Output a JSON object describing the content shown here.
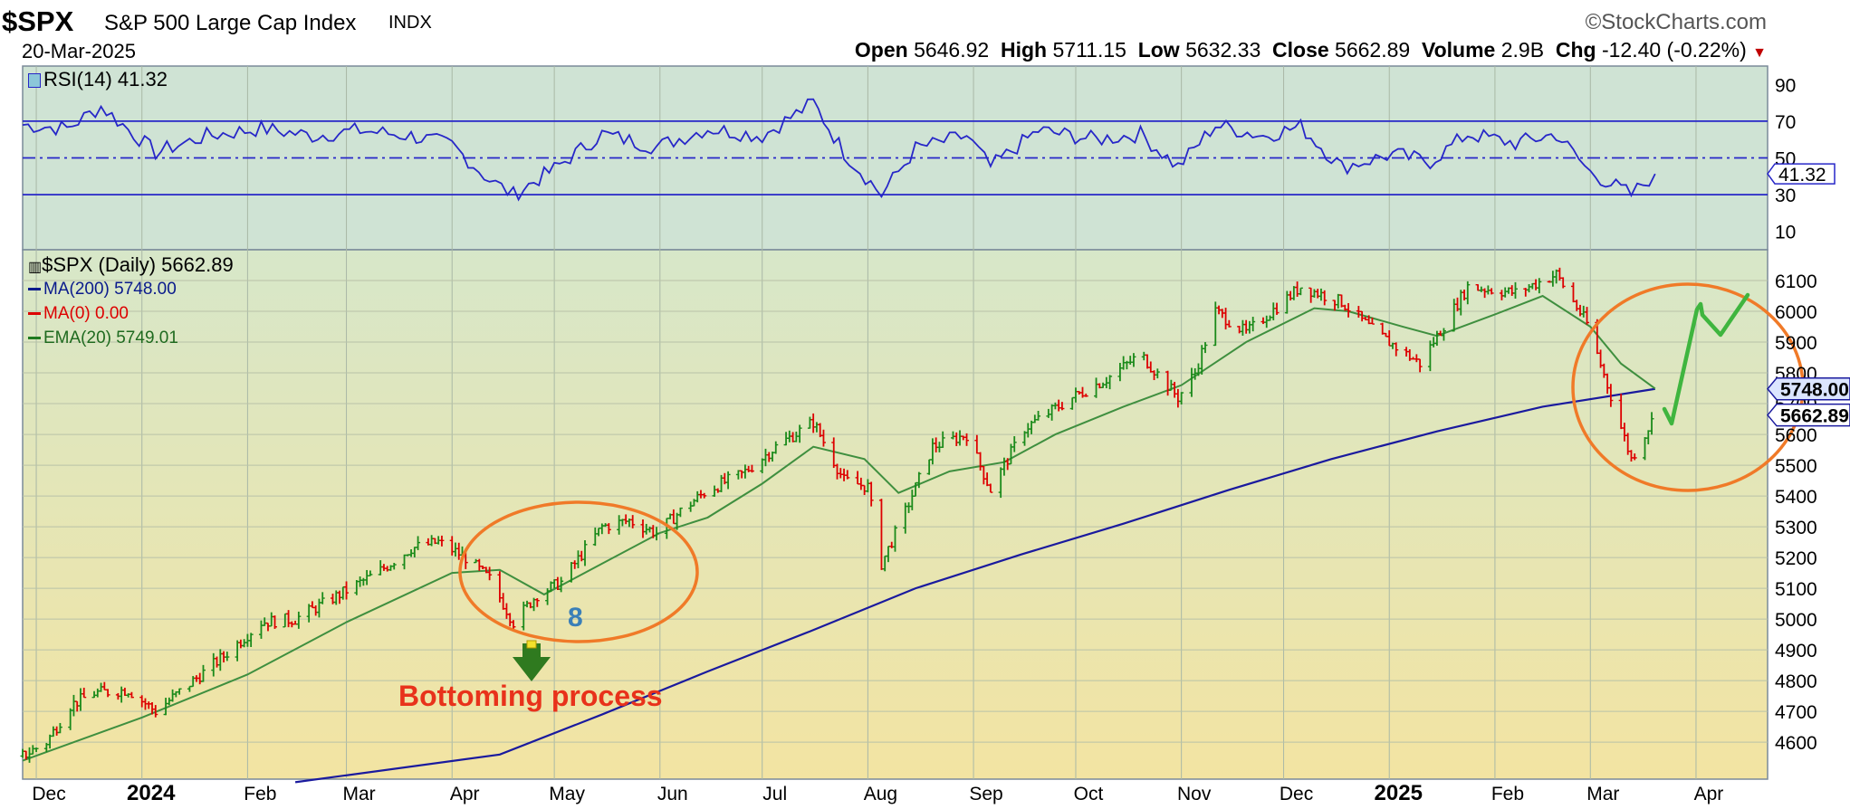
{
  "header": {
    "symbol": "$SPX",
    "name": "S&P 500 Large Cap Index",
    "exchange": "INDX",
    "date": "20-Mar-2025",
    "brand": "©StockCharts.com",
    "open_label": "Open",
    "open": "5646.92",
    "high_label": "High",
    "high": "5711.15",
    "low_label": "Low",
    "low": "5632.33",
    "close_label": "Close",
    "close": "5662.89",
    "volume_label": "Volume",
    "volume": "2.9B",
    "chg_label": "Chg",
    "chg": "-12.40 (-0.22%)",
    "chg_marker": "▼"
  },
  "rsi_panel": {
    "label": "RSI(14) 41.32",
    "last_value_tag": "41.32"
  },
  "price_panel": {
    "label": "$SPX (Daily) 5662.89",
    "legend": [
      {
        "text": "MA(200) 5748.00",
        "color": "#0a1a8c"
      },
      {
        "text": "MA(0) 0.00",
        "color": "#dd0000"
      },
      {
        "text": "EMA(20) 5749.01",
        "color": "#1f7a1f"
      }
    ],
    "ma200_tag": "5748.00",
    "close_tag": "5662.89"
  },
  "annotations": {
    "bottoming_text": "Bottoming process",
    "eight_text": "8"
  },
  "colors": {
    "price_up": "#1a8a1a",
    "price_down": "#dd0000",
    "ma200": "#1a1a9e",
    "ema20": "#3f8f3f",
    "rsi_line": "#2727c8",
    "annotation_orange": "#f07a28",
    "annotation_green": "#3fb53f",
    "arrow_green": "#2f7a1f"
  },
  "chart_data": [
    {
      "type": "line",
      "title": "RSI(14) 41.32",
      "x_range": [
        "2023-11-27",
        "2025-04-22"
      ],
      "ylim": [
        0,
        100
      ],
      "y_ticks": [
        10,
        30,
        50,
        70,
        90
      ],
      "tick_labels": [
        "10",
        "30",
        "50",
        "70",
        "90"
      ],
      "reference_lines": [
        30,
        50,
        70
      ],
      "series": [
        {
          "name": "RSI(14)",
          "x": [
            "2023-11-27",
            "2023-12-10",
            "2023-12-20",
            "2024-01-05",
            "2024-01-20",
            "2024-02-05",
            "2024-02-20",
            "2024-03-05",
            "2024-03-20",
            "2024-04-01",
            "2024-04-12",
            "2024-04-19",
            "2024-05-01",
            "2024-05-15",
            "2024-05-31",
            "2024-06-15",
            "2024-07-01",
            "2024-07-16",
            "2024-07-25",
            "2024-08-05",
            "2024-08-15",
            "2024-08-30",
            "2024-09-06",
            "2024-09-20",
            "2024-10-07",
            "2024-10-20",
            "2024-10-31",
            "2024-11-11",
            "2024-11-25",
            "2024-12-06",
            "2024-12-18",
            "2025-01-02",
            "2025-01-13",
            "2025-01-24",
            "2025-02-07",
            "2025-02-19",
            "2025-03-01",
            "2025-03-13",
            "2025-03-20"
          ],
          "values": [
            68,
            66,
            78,
            53,
            62,
            66,
            62,
            65,
            62,
            57,
            38,
            30,
            44,
            63,
            56,
            66,
            62,
            80,
            53,
            30,
            55,
            62,
            45,
            65,
            60,
            63,
            45,
            68,
            62,
            67,
            45,
            52,
            48,
            63,
            58,
            63,
            42,
            30,
            41.32
          ]
        }
      ]
    },
    {
      "type": "line",
      "title": "$SPX (Daily) 5662.89",
      "x_range": [
        "2023-11-27",
        "2025-04-22"
      ],
      "x_tick_labels": [
        "Dec",
        "2024",
        "Feb",
        "Mar",
        "Apr",
        "May",
        "Jun",
        "Jul",
        "Aug",
        "Sep",
        "Oct",
        "Nov",
        "Dec",
        "2025",
        "Feb",
        "Mar",
        "Apr"
      ],
      "ylim": [
        4480,
        6200
      ],
      "y_ticks": [
        4600,
        4700,
        4800,
        4900,
        5000,
        5100,
        5200,
        5300,
        5400,
        5500,
        5600,
        5700,
        5800,
        5900,
        6000,
        6100
      ],
      "y_tick_labels": [
        "4600",
        "4700",
        "4800",
        "4900",
        "5000",
        "5100",
        "5200",
        "5300",
        "5400",
        "5500",
        "5600",
        "5700",
        "5800",
        "5900",
        "6000",
        "6100"
      ],
      "series": [
        {
          "name": "$SPX",
          "style": "ohlc-bars",
          "x": [
            "2023-11-27",
            "2023-12-04",
            "2023-12-11",
            "2023-12-18",
            "2023-12-28",
            "2024-01-05",
            "2024-01-15",
            "2024-01-25",
            "2024-02-05",
            "2024-02-15",
            "2024-02-28",
            "2024-03-10",
            "2024-03-20",
            "2024-03-28",
            "2024-04-05",
            "2024-04-12",
            "2024-04-19",
            "2024-04-26",
            "2024-05-03",
            "2024-05-15",
            "2024-05-23",
            "2024-05-31",
            "2024-06-07",
            "2024-06-15",
            "2024-06-25",
            "2024-07-05",
            "2024-07-16",
            "2024-07-25",
            "2024-08-01",
            "2024-08-05",
            "2024-08-12",
            "2024-08-20",
            "2024-08-30",
            "2024-09-06",
            "2024-09-16",
            "2024-09-30",
            "2024-10-10",
            "2024-10-20",
            "2024-10-31",
            "2024-11-05",
            "2024-11-11",
            "2024-11-20",
            "2024-12-06",
            "2024-12-18",
            "2024-12-28",
            "2025-01-10",
            "2025-01-24",
            "2025-02-07",
            "2025-02-19",
            "2025-02-28",
            "2025-03-06",
            "2025-03-13",
            "2025-03-20"
          ],
          "values": [
            4555,
            4600,
            4720,
            4760,
            4770,
            4700,
            4790,
            4880,
            4990,
            5000,
            5080,
            5150,
            5230,
            5250,
            5200,
            5130,
            4990,
            5080,
            5120,
            5300,
            5320,
            5280,
            5350,
            5420,
            5470,
            5560,
            5640,
            5450,
            5430,
            5180,
            5350,
            5560,
            5600,
            5420,
            5620,
            5720,
            5780,
            5860,
            5720,
            5800,
            6000,
            5930,
            6080,
            6030,
            5930,
            5830,
            6080,
            6060,
            6120,
            5960,
            5760,
            5520,
            5662.89
          ]
        },
        {
          "name": "EMA(20) 5749.01",
          "x": [
            "2023-11-27",
            "2024-01-01",
            "2024-02-01",
            "2024-03-01",
            "2024-04-01",
            "2024-04-15",
            "2024-04-28",
            "2024-05-15",
            "2024-06-01",
            "2024-06-15",
            "2024-07-01",
            "2024-07-16",
            "2024-07-31",
            "2024-08-10",
            "2024-08-25",
            "2024-09-10",
            "2024-09-25",
            "2024-10-15",
            "2024-11-01",
            "2024-11-20",
            "2024-12-10",
            "2024-12-20",
            "2025-01-05",
            "2025-01-15",
            "2025-02-01",
            "2025-02-15",
            "2025-03-01",
            "2025-03-10",
            "2025-03-20"
          ],
          "values": [
            4540,
            4680,
            4820,
            4990,
            5150,
            5160,
            5080,
            5180,
            5280,
            5330,
            5440,
            5560,
            5520,
            5410,
            5480,
            5510,
            5600,
            5690,
            5760,
            5900,
            6010,
            6000,
            5950,
            5920,
            5990,
            6050,
            5950,
            5830,
            5749.01
          ]
        },
        {
          "name": "MA(200) 5748.00",
          "x": [
            "2024-04-15",
            "2024-05-15",
            "2024-06-15",
            "2024-07-15",
            "2024-08-15",
            "2024-09-15",
            "2024-10-15",
            "2024-11-15",
            "2024-12-15",
            "2025-01-15",
            "2025-02-15",
            "2025-03-20"
          ],
          "values": [
            4560,
            4690,
            4830,
            4960,
            5100,
            5210,
            5310,
            5420,
            5520,
            5610,
            5690,
            5748.0
          ]
        },
        {
          "name": "MA(0) 0.00",
          "x": [],
          "values": []
        }
      ]
    }
  ]
}
